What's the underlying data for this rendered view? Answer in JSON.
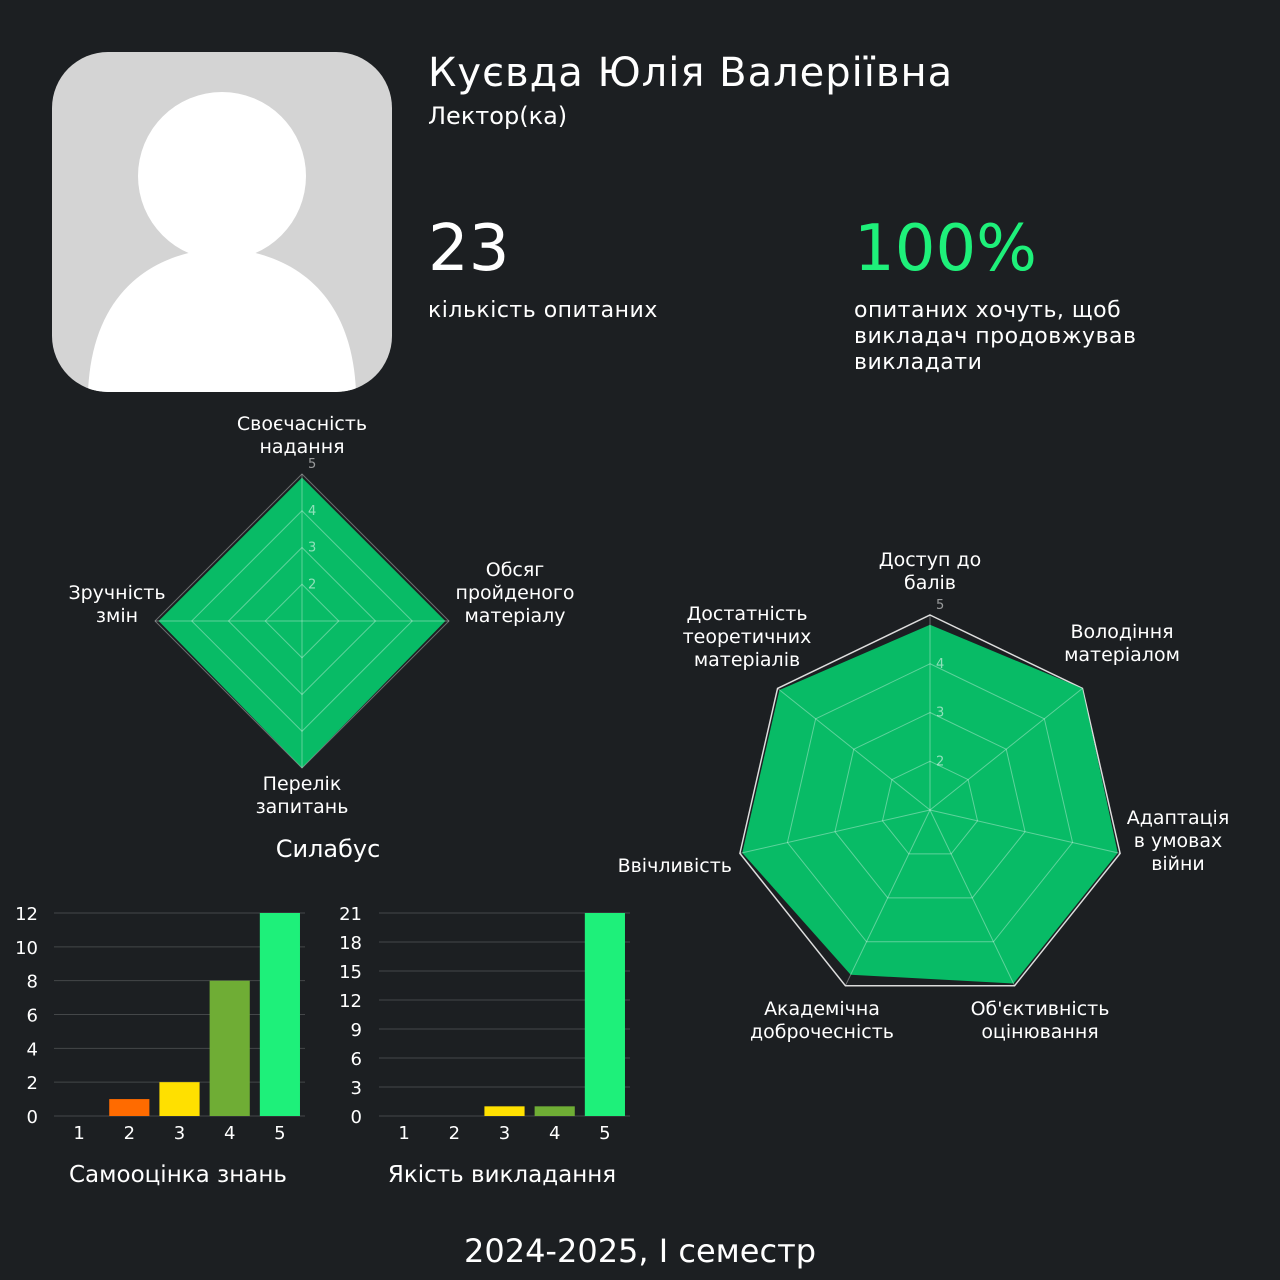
{
  "profile": {
    "name": "Куєвда Юлія Валеріївна",
    "role": "Лектор(ка)"
  },
  "stats": {
    "respondents_value": "23",
    "respondents_label": "кількість опитаних",
    "continue_value": "100%",
    "continue_label": "опитаних хочуть, щоб викладач продовжував викладати"
  },
  "footer": {
    "semester": "2024-2025, I семестр"
  },
  "colors": {
    "background": "#1c1f22",
    "radar_fill": "#08bb66",
    "accent_green": "#1ef07a",
    "bar_1": "#ff6b00",
    "bar_2": "#ff6b00",
    "bar_3": "#ffe000",
    "bar_4": "#6fad35",
    "bar_5": "#1ef07a"
  },
  "chart_data": [
    {
      "type": "radar",
      "title": "Силабус",
      "axes": [
        [
          "Своєчасність",
          "надання"
        ],
        [
          "Обсяг",
          "пройденого",
          "матеріалу"
        ],
        [
          "Перелік",
          "запитань"
        ],
        [
          "Зручність",
          "змін"
        ]
      ],
      "values": [
        4.9,
        4.9,
        5.0,
        4.9
      ],
      "rlim": [
        1,
        5
      ],
      "ticks": [
        "2",
        "3",
        "4",
        "5"
      ]
    },
    {
      "type": "radar",
      "title": "",
      "axes": [
        [
          "Доступ до",
          "балів"
        ],
        [
          "Володіння",
          "матеріалом"
        ],
        [
          "Адаптація",
          "в умовах",
          "війни"
        ],
        [
          "Об'єктивність",
          "оцінювання"
        ],
        [
          "Академічна",
          "доброчесність"
        ],
        [
          "Ввічливість"
        ],
        [
          "Достатність",
          "теоретичних",
          "матеріалів"
        ]
      ],
      "values": [
        4.8,
        5.0,
        4.95,
        4.95,
        4.75,
        4.95,
        4.95
      ],
      "rlim": [
        1,
        5
      ],
      "ticks": [
        "2",
        "3",
        "4",
        "5"
      ]
    },
    {
      "type": "bar",
      "title": "Самооцінка знань",
      "categories": [
        "1",
        "2",
        "3",
        "4",
        "5"
      ],
      "values": [
        0,
        1,
        2,
        8,
        12
      ],
      "ylim": [
        0,
        12
      ],
      "yticks": [
        "0",
        "2",
        "4",
        "6",
        "8",
        "10",
        "12"
      ]
    },
    {
      "type": "bar",
      "title": "Якість викладання",
      "categories": [
        "1",
        "2",
        "3",
        "4",
        "5"
      ],
      "values": [
        0,
        0,
        1,
        1,
        21
      ],
      "ylim": [
        0,
        21
      ],
      "yticks": [
        "0",
        "3",
        "6",
        "9",
        "12",
        "15",
        "18",
        "21"
      ]
    }
  ]
}
